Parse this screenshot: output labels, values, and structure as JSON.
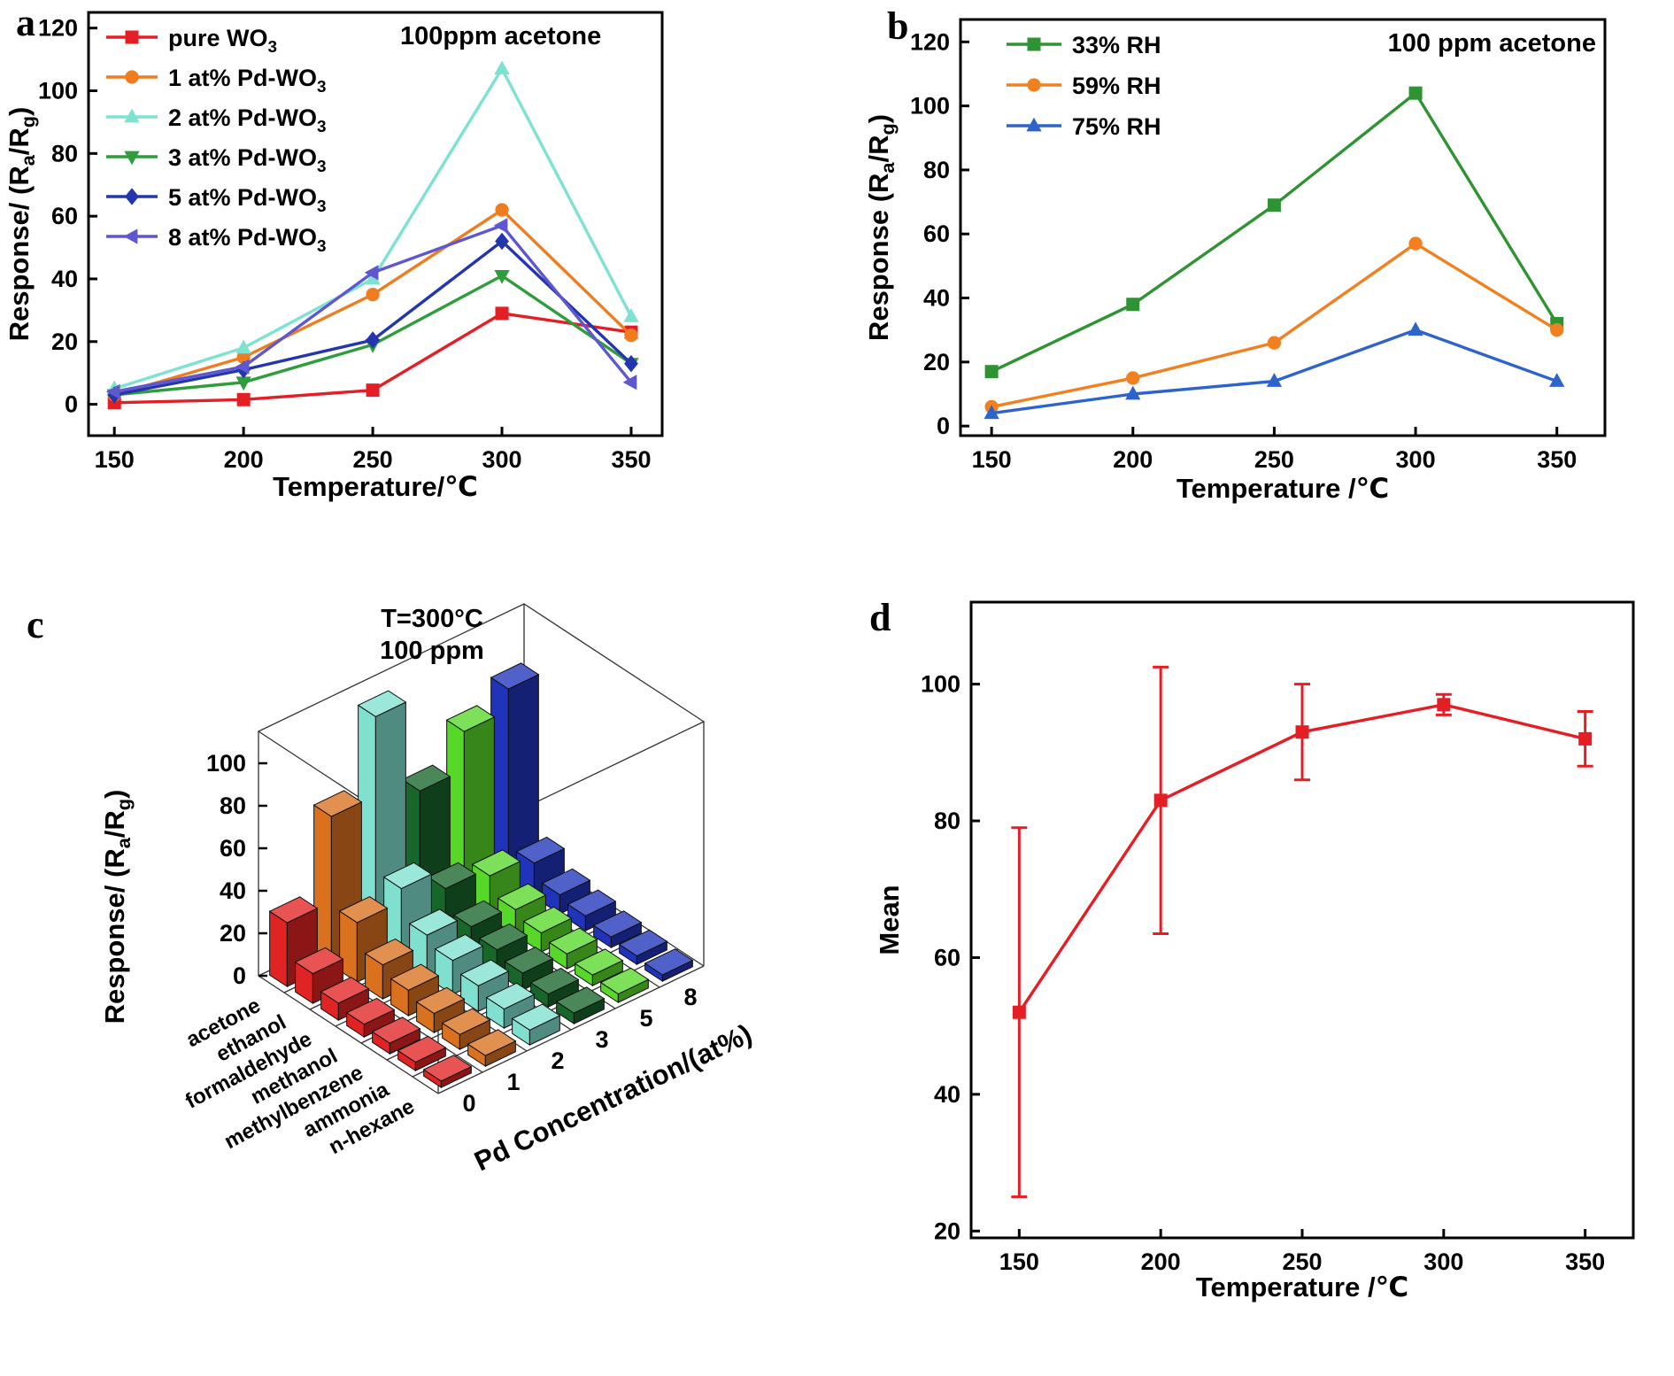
{
  "chart_data": [
    {
      "panel": "a",
      "type": "line",
      "annotation": "100ppm acetone",
      "xlabel": "Temperature/℃",
      "ylabel": "Response/ (R_a/R_g)",
      "x": [
        150,
        200,
        250,
        300,
        350
      ],
      "xlim": [
        140,
        362
      ],
      "ylim": [
        -10,
        125
      ],
      "yticks": [
        0,
        20,
        40,
        60,
        80,
        100,
        120
      ],
      "legend_position": "top-left",
      "grid": false,
      "series": [
        {
          "name": "pure WO_3",
          "color": "#e41e25",
          "marker": "square",
          "values": [
            0.5,
            1.5,
            4.5,
            29,
            23
          ]
        },
        {
          "name": "1 at% Pd-WO_3",
          "color": "#ef7d1f",
          "marker": "circle",
          "values": [
            3,
            15,
            35,
            62,
            22
          ]
        },
        {
          "name": "2 at% Pd-WO_3",
          "color": "#7de2d1",
          "marker": "triangle-up",
          "values": [
            5,
            18,
            40,
            107,
            28
          ]
        },
        {
          "name": "3 at% Pd-WO_3",
          "color": "#2f9d3c",
          "marker": "triangle-down",
          "values": [
            3,
            7,
            19,
            41,
            13
          ]
        },
        {
          "name": "5 at% Pd-WO_3",
          "color": "#2336ad",
          "marker": "diamond",
          "values": [
            3,
            11,
            20.5,
            52,
            13
          ]
        },
        {
          "name": "8 at% Pd-WO_3",
          "color": "#5f57cf",
          "marker": "triangle-left",
          "values": [
            4,
            12,
            42,
            57,
            7
          ]
        }
      ]
    },
    {
      "panel": "b",
      "type": "line",
      "annotation": "100 ppm acetone",
      "xlabel": "Temperature /℃",
      "ylabel": "Response (R_a/R_g)",
      "x": [
        150,
        200,
        250,
        300,
        350
      ],
      "xlim": [
        139,
        367
      ],
      "ylim": [
        -3,
        127
      ],
      "yticks": [
        0,
        20,
        40,
        60,
        80,
        100,
        120
      ],
      "legend_position": "top-left",
      "grid": false,
      "series": [
        {
          "name": "33% RH",
          "color": "#2e9332",
          "marker": "square",
          "values": [
            17,
            38,
            69,
            104,
            32
          ]
        },
        {
          "name": "59% RH",
          "color": "#f08020",
          "marker": "circle",
          "values": [
            6,
            15,
            26,
            57,
            30
          ]
        },
        {
          "name": "75% RH",
          "color": "#2f63cc",
          "marker": "triangle-up",
          "values": [
            4,
            10,
            14,
            30,
            14
          ]
        }
      ]
    },
    {
      "panel": "c",
      "type": "bar3d",
      "annotation_lines": [
        "T=300°C",
        "100 ppm"
      ],
      "zlabel": "Response/ (R_a/R_g)",
      "xlabel": "Pd Concentration/(at%)",
      "x_categories": [
        "0",
        "1",
        "2",
        "3",
        "5",
        "8"
      ],
      "y_categories": [
        "acetone",
        "ethanol",
        "formaldehyde",
        "methanol",
        "methylbenzene",
        "ammonia",
        "n-hexane"
      ],
      "zticks": [
        0,
        20,
        40,
        60,
        80,
        100
      ],
      "zlim": [
        0,
        115
      ],
      "series_colors": [
        "#e02423",
        "#d9711e",
        "#7fe0cf",
        "#17662a",
        "#57d829",
        "#2034bb"
      ],
      "values": {
        "acetone": [
          30,
          70,
          107,
          62,
          80,
          90
        ],
        "ethanol": [
          14,
          28,
          34,
          24,
          20,
          16
        ],
        "formaldehyde": [
          8,
          16,
          20,
          14,
          12,
          9
        ],
        "methanol": [
          6,
          12,
          16,
          11,
          9,
          7
        ],
        "methylbenzene": [
          5,
          9,
          12,
          8,
          7,
          5
        ],
        "ammonia": [
          4,
          7,
          9,
          6,
          5,
          4
        ],
        "n-hexane": [
          3,
          5,
          7,
          5,
          4,
          3
        ]
      }
    },
    {
      "panel": "d",
      "type": "line",
      "xlabel": "Temperature /℃",
      "ylabel": "Mean",
      "x": [
        150,
        200,
        250,
        300,
        350
      ],
      "xlim": [
        133,
        367
      ],
      "ylim": [
        19,
        112
      ],
      "yticks": [
        20,
        40,
        60,
        80,
        100
      ],
      "grid": false,
      "series": [
        {
          "name": "mean",
          "color": "#e41e25",
          "marker": "square",
          "values": [
            52,
            83,
            93,
            97,
            92
          ],
          "errors": [
            27,
            19.5,
            7,
            1.5,
            4
          ]
        }
      ]
    }
  ]
}
